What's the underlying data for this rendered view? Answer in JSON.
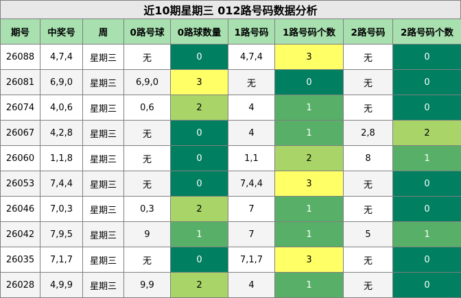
{
  "title": "近10期星期三 012路号码数据分析",
  "headers": [
    "期号",
    "中奖号",
    "周",
    "0路号球",
    "0路球数量",
    "1路号码",
    "1路号码个数",
    "2路号码",
    "2路号码个数"
  ],
  "colors": {
    "header_bg": "#a8e0b0",
    "dark_green": "#008060",
    "mid_green": "#58b068",
    "light_green": "#a8d468",
    "yellow": "#ffff66"
  },
  "rows": [
    {
      "issue": "26088",
      "numbers": "4,7,4",
      "weekday": "星期三",
      "zero_nums": "无",
      "zero_count": "0",
      "one_nums": "4,7,4",
      "one_count": "3",
      "two_nums": "无",
      "two_count": "0"
    },
    {
      "issue": "26081",
      "numbers": "6,9,0",
      "weekday": "星期三",
      "zero_nums": "6,9,0",
      "zero_count": "3",
      "one_nums": "无",
      "one_count": "0",
      "two_nums": "无",
      "two_count": "0"
    },
    {
      "issue": "26074",
      "numbers": "4,0,6",
      "weekday": "星期三",
      "zero_nums": "0,6",
      "zero_count": "2",
      "one_nums": "4",
      "one_count": "1",
      "two_nums": "无",
      "two_count": "0"
    },
    {
      "issue": "26067",
      "numbers": "4,2,8",
      "weekday": "星期三",
      "zero_nums": "无",
      "zero_count": "0",
      "one_nums": "4",
      "one_count": "1",
      "two_nums": "2,8",
      "two_count": "2"
    },
    {
      "issue": "26060",
      "numbers": "1,1,8",
      "weekday": "星期三",
      "zero_nums": "无",
      "zero_count": "0",
      "one_nums": "1,1",
      "one_count": "2",
      "two_nums": "8",
      "two_count": "1"
    },
    {
      "issue": "26053",
      "numbers": "7,4,4",
      "weekday": "星期三",
      "zero_nums": "无",
      "zero_count": "0",
      "one_nums": "7,4,4",
      "one_count": "3",
      "two_nums": "无",
      "two_count": "0"
    },
    {
      "issue": "26046",
      "numbers": "7,0,3",
      "weekday": "星期三",
      "zero_nums": "0,3",
      "zero_count": "2",
      "one_nums": "7",
      "one_count": "1",
      "two_nums": "无",
      "two_count": "0"
    },
    {
      "issue": "26042",
      "numbers": "7,9,5",
      "weekday": "星期三",
      "zero_nums": "9",
      "zero_count": "1",
      "one_nums": "7",
      "one_count": "1",
      "two_nums": "5",
      "two_count": "1"
    },
    {
      "issue": "26035",
      "numbers": "7,1,7",
      "weekday": "星期三",
      "zero_nums": "无",
      "zero_count": "0",
      "one_nums": "7,1,7",
      "one_count": "3",
      "two_nums": "无",
      "two_count": "0"
    },
    {
      "issue": "26028",
      "numbers": "4,9,9",
      "weekday": "星期三",
      "zero_nums": "9,9",
      "zero_count": "2",
      "one_nums": "4",
      "one_count": "1",
      "two_nums": "无",
      "two_count": "0"
    }
  ]
}
